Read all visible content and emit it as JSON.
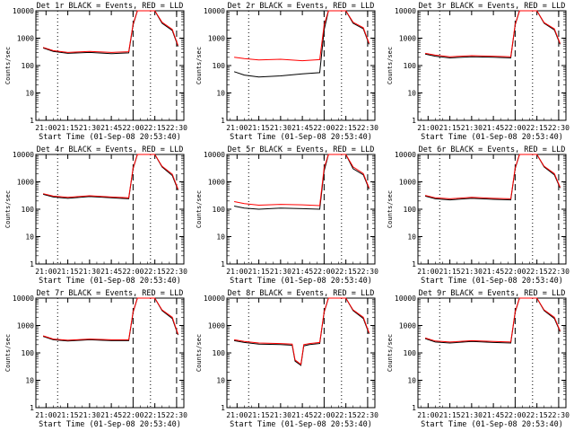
{
  "style": {
    "events_color": "#000000",
    "lld_color": "#ff0000",
    "background": "#ffffff"
  },
  "chart_data": [
    {
      "type": "line",
      "title": "Det 1r BLACK = Events, RED = LLD",
      "xlabel": "Start Time (01-Sep-08 20:53:40)",
      "ylabel": "Counts/sec",
      "yscale": "log",
      "ylim": [
        1,
        10000
      ],
      "xticks": [
        "21:00",
        "21:15",
        "21:30",
        "21:45",
        "22:00",
        "22:15",
        "22:30"
      ],
      "yticks": [
        "1",
        "10",
        "100",
        "1000",
        "10000"
      ],
      "x": [
        "20:58",
        "21:05",
        "21:15",
        "21:30",
        "21:45",
        "21:57",
        "22:00",
        "22:03",
        "22:10",
        "22:15",
        "22:20",
        "22:27",
        "22:31"
      ],
      "series": [
        {
          "values": [
            440,
            330,
            280,
            300,
            270,
            290,
            3000,
            10000,
            10000,
            10000,
            3500,
            1900,
            500
          ]
        },
        {
          "values": [
            460,
            350,
            300,
            330,
            300,
            320,
            3300,
            10000,
            10000,
            10000,
            3800,
            2100,
            540
          ]
        }
      ]
    },
    {
      "type": "line",
      "title": "Det 2r BLACK = Events, RED = LLD",
      "xlabel": "Start Time (01-Sep-08 20:53:40)",
      "ylabel": "Counts/sec",
      "yscale": "log",
      "ylim": [
        1,
        10000
      ],
      "xticks": [
        "21:00",
        "21:15",
        "21:30",
        "21:45",
        "22:00",
        "22:15",
        "22:30"
      ],
      "yticks": [
        "1",
        "10",
        "100",
        "1000",
        "10000"
      ],
      "x": [
        "20:58",
        "21:05",
        "21:15",
        "21:30",
        "21:45",
        "21:57",
        "22:00",
        "22:03",
        "22:10",
        "22:15",
        "22:20",
        "22:27",
        "22:31"
      ],
      "series": [
        {
          "values": [
            60,
            45,
            38,
            42,
            50,
            55,
            2000,
            10000,
            10000,
            10000,
            3500,
            2200,
            600
          ]
        },
        {
          "values": [
            200,
            180,
            160,
            170,
            150,
            165,
            3000,
            10000,
            10000,
            10000,
            3800,
            2400,
            650
          ]
        }
      ]
    },
    {
      "type": "line",
      "title": "Det 3r BLACK = Events, RED = LLD",
      "xlabel": "Start Time (01-Sep-08 20:53:40)",
      "ylabel": "Counts/sec",
      "yscale": "log",
      "ylim": [
        1,
        10000
      ],
      "xticks": [
        "21:00",
        "21:15",
        "21:30",
        "21:45",
        "22:00",
        "22:15",
        "22:30"
      ],
      "yticks": [
        "1",
        "10",
        "100",
        "1000",
        "10000"
      ],
      "x": [
        "20:58",
        "21:05",
        "21:15",
        "21:30",
        "21:45",
        "21:57",
        "22:00",
        "22:03",
        "22:10",
        "22:15",
        "22:20",
        "22:27",
        "22:31"
      ],
      "series": [
        {
          "values": [
            260,
            220,
            190,
            210,
            200,
            190,
            3000,
            10000,
            10000,
            10000,
            3500,
            2000,
            600
          ]
        },
        {
          "values": [
            280,
            240,
            210,
            230,
            220,
            210,
            3200,
            10000,
            10000,
            10000,
            3700,
            2200,
            640
          ]
        }
      ]
    },
    {
      "type": "line",
      "title": "Det 4r BLACK = Events, RED = LLD",
      "xlabel": "Start Time (01-Sep-08 20:53:40)",
      "ylabel": "Counts/sec",
      "yscale": "log",
      "ylim": [
        1,
        10000
      ],
      "xticks": [
        "21:00",
        "21:15",
        "21:30",
        "21:45",
        "22:00",
        "22:15",
        "22:30"
      ],
      "yticks": [
        "1",
        "10",
        "100",
        "1000",
        "10000"
      ],
      "x": [
        "20:58",
        "21:05",
        "21:15",
        "21:30",
        "21:45",
        "21:57",
        "22:00",
        "22:03",
        "22:10",
        "22:15",
        "22:20",
        "22:27",
        "22:31"
      ],
      "series": [
        {
          "values": [
            350,
            280,
            250,
            290,
            260,
            240,
            3000,
            10000,
            10000,
            10000,
            3500,
            1700,
            500
          ]
        },
        {
          "values": [
            370,
            300,
            270,
            310,
            280,
            260,
            3200,
            10000,
            10000,
            10000,
            3700,
            1900,
            540
          ]
        }
      ]
    },
    {
      "type": "line",
      "title": "Det 5r BLACK = Events, RED = LLD",
      "xlabel": "Start Time (01-Sep-08 20:53:40)",
      "ylabel": "Counts/sec",
      "yscale": "log",
      "ylim": [
        1,
        10000
      ],
      "xticks": [
        "21:00",
        "21:15",
        "21:30",
        "21:45",
        "22:00",
        "22:15",
        "22:30"
      ],
      "yticks": [
        "1",
        "10",
        "100",
        "1000",
        "10000"
      ],
      "x": [
        "20:58",
        "21:05",
        "21:15",
        "21:30",
        "21:45",
        "21:57",
        "22:00",
        "22:03",
        "22:10",
        "22:15",
        "22:20",
        "22:27",
        "22:31"
      ],
      "series": [
        {
          "values": [
            130,
            110,
            100,
            110,
            105,
            100,
            2500,
            10000,
            10000,
            10000,
            3000,
            1800,
            550
          ]
        },
        {
          "values": [
            190,
            160,
            140,
            150,
            145,
            135,
            3200,
            10000,
            10000,
            10000,
            3500,
            2000,
            600
          ]
        }
      ]
    },
    {
      "type": "line",
      "title": "Det 6r BLACK = Events, RED = LLD",
      "xlabel": "Start Time (01-Sep-08 20:53:40)",
      "ylabel": "Counts/sec",
      "yscale": "log",
      "ylim": [
        1,
        10000
      ],
      "xticks": [
        "21:00",
        "21:15",
        "21:30",
        "21:45",
        "22:00",
        "22:15",
        "22:30"
      ],
      "yticks": [
        "1",
        "10",
        "100",
        "1000",
        "10000"
      ],
      "x": [
        "20:58",
        "21:05",
        "21:15",
        "21:30",
        "21:45",
        "21:57",
        "22:00",
        "22:03",
        "22:10",
        "22:15",
        "22:20",
        "22:27",
        "22:31"
      ],
      "series": [
        {
          "values": [
            300,
            240,
            220,
            250,
            230,
            220,
            3000,
            10000,
            10000,
            10000,
            3500,
            1800,
            600
          ]
        },
        {
          "values": [
            320,
            260,
            240,
            270,
            250,
            240,
            3200,
            10000,
            10000,
            10000,
            3700,
            2000,
            640
          ]
        }
      ]
    },
    {
      "type": "line",
      "title": "Det 7r BLACK = Events, RED = LLD",
      "xlabel": "Start Time (01-Sep-08 20:53:40)",
      "ylabel": "Counts/sec",
      "yscale": "log",
      "ylim": [
        1,
        10000
      ],
      "xticks": [
        "21:00",
        "21:15",
        "21:30",
        "21:45",
        "22:00",
        "22:15",
        "22:30"
      ],
      "yticks": [
        "1",
        "10",
        "100",
        "1000",
        "10000"
      ],
      "x": [
        "20:58",
        "21:05",
        "21:15",
        "21:30",
        "21:45",
        "21:57",
        "22:00",
        "22:03",
        "22:10",
        "22:15",
        "22:20",
        "22:27",
        "22:31"
      ],
      "series": [
        {
          "values": [
            400,
            300,
            270,
            300,
            280,
            280,
            3000,
            10000,
            10000,
            10000,
            3500,
            1800,
            450
          ]
        },
        {
          "values": [
            420,
            320,
            290,
            320,
            300,
            300,
            3200,
            10000,
            10000,
            10000,
            3700,
            2000,
            480
          ]
        }
      ]
    },
    {
      "type": "line",
      "title": "Det 8r BLACK = Events, RED = LLD",
      "xlabel": "Start Time (01-Sep-08 20:53:40)",
      "ylabel": "Counts/sec",
      "yscale": "log",
      "ylim": [
        1,
        10000
      ],
      "xticks": [
        "21:00",
        "21:15",
        "21:30",
        "21:45",
        "22:00",
        "22:15",
        "22:30"
      ],
      "yticks": [
        "1",
        "10",
        "100",
        "1000",
        "10000"
      ],
      "x": [
        "20:58",
        "21:05",
        "21:15",
        "21:30",
        "21:38",
        "21:40",
        "21:44",
        "21:46",
        "21:50",
        "21:57",
        "22:00",
        "22:03",
        "22:10",
        "22:15",
        "22:20",
        "22:27",
        "22:31"
      ],
      "series": [
        {
          "values": [
            280,
            240,
            210,
            200,
            190,
            50,
            35,
            180,
            200,
            220,
            3000,
            10000,
            10000,
            10000,
            3500,
            1800,
            500
          ]
        },
        {
          "values": [
            300,
            260,
            230,
            220,
            210,
            55,
            38,
            200,
            220,
            240,
            3200,
            10000,
            10000,
            10000,
            3700,
            2000,
            540
          ]
        }
      ]
    },
    {
      "type": "line",
      "title": "Det 9r BLACK = Events, RED = LLD",
      "xlabel": "Start Time (01-Sep-08 20:53:40)",
      "ylabel": "Counts/sec",
      "yscale": "log",
      "ylim": [
        1,
        10000
      ],
      "xticks": [
        "21:00",
        "21:15",
        "21:30",
        "21:45",
        "22:00",
        "22:15",
        "22:30"
      ],
      "yticks": [
        "1",
        "10",
        "100",
        "1000",
        "10000"
      ],
      "x": [
        "20:58",
        "21:05",
        "21:15",
        "21:30",
        "21:45",
        "21:57",
        "22:00",
        "22:03",
        "22:10",
        "22:15",
        "22:20",
        "22:27",
        "22:31"
      ],
      "series": [
        {
          "values": [
            330,
            250,
            230,
            260,
            240,
            230,
            3000,
            10000,
            10000,
            10000,
            3500,
            1800,
            600
          ]
        },
        {
          "values": [
            350,
            270,
            250,
            280,
            260,
            250,
            3200,
            10000,
            10000,
            10000,
            3700,
            2000,
            640
          ]
        }
      ]
    }
  ]
}
